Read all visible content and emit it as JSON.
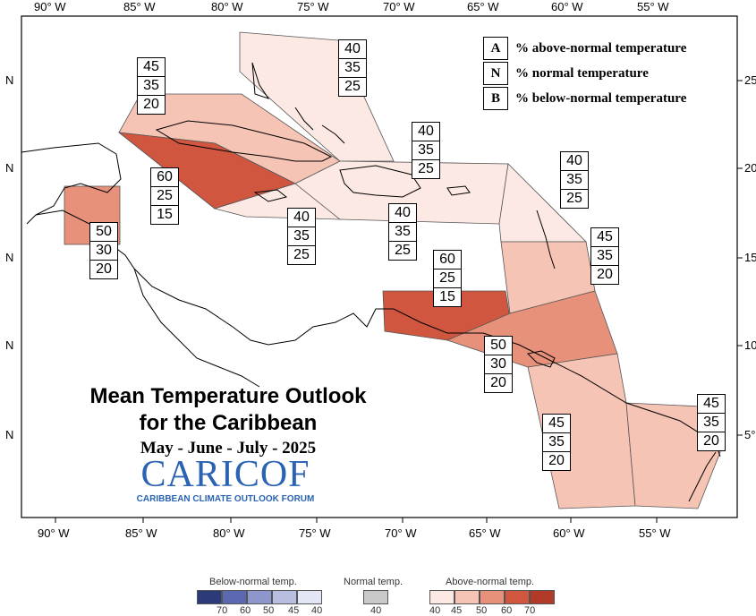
{
  "map": {
    "top_longitude_labels": [
      "90° W",
      "85° W",
      "80° W",
      "75° W",
      "70° W",
      "65° W",
      "60° W",
      "55° W"
    ],
    "bottom_longitude_labels": [
      "90° W",
      "85° W",
      "80° W",
      "75° W",
      "70° W",
      "65° W",
      "60° W",
      "55° W"
    ],
    "left_latitude_labels": [
      "N",
      "N",
      "N",
      "N",
      "N"
    ],
    "right_latitude_labels": [
      "25°",
      "20°",
      "15°",
      "10°",
      "5°"
    ],
    "colors": {
      "a40": "#fde9e3",
      "a45": "#f6c4b5",
      "a50": "#e8917a",
      "a60": "#d0563f",
      "a70": "#b23a28"
    }
  },
  "legend": {
    "items": [
      {
        "key": "A",
        "label": "% above-normal temperature"
      },
      {
        "key": "N",
        "label": "% normal temperature"
      },
      {
        "key": "B",
        "label": "% below-normal temperature"
      }
    ]
  },
  "zones": [
    {
      "name": "bahamas",
      "above": "40",
      "normal": "35",
      "below": "25"
    },
    {
      "name": "cuba",
      "above": "45",
      "normal": "35",
      "below": "20"
    },
    {
      "name": "cayman",
      "above": "60",
      "normal": "25",
      "below": "15"
    },
    {
      "name": "belize",
      "above": "50",
      "normal": "30",
      "below": "20"
    },
    {
      "name": "jamaica",
      "above": "40",
      "normal": "35",
      "below": "25"
    },
    {
      "name": "hispaniola-north",
      "above": "40",
      "normal": "35",
      "below": "25"
    },
    {
      "name": "hispaniola-south",
      "above": "40",
      "normal": "35",
      "below": "25"
    },
    {
      "name": "leeward",
      "above": "40",
      "normal": "35",
      "below": "25"
    },
    {
      "name": "windward",
      "above": "45",
      "normal": "35",
      "below": "20"
    },
    {
      "name": "abc-islands",
      "above": "60",
      "normal": "25",
      "below": "15"
    },
    {
      "name": "trinidad",
      "above": "50",
      "normal": "30",
      "below": "20"
    },
    {
      "name": "guyana",
      "above": "45",
      "normal": "35",
      "below": "20"
    },
    {
      "name": "suriname-fg",
      "above": "45",
      "normal": "35",
      "below": "20"
    }
  ],
  "title": {
    "line1": "Mean Temperature Outlook",
    "line2": "for the Caribbean",
    "period": "May - June - July - 2025"
  },
  "logo": {
    "name": "CARICOF",
    "tagline": "CARIBBEAN CLIMATE OUTLOOK FORUM"
  },
  "scale": {
    "below_title": "Below-normal temp.",
    "normal_title": "Normal temp.",
    "above_title": "Above-normal temp.",
    "below_values": [
      "70",
      "60",
      "50",
      "45",
      "40"
    ],
    "normal_values": [
      "40"
    ],
    "above_values": [
      "40",
      "45",
      "50",
      "60",
      "70"
    ],
    "below_colors": [
      "#2b3a78",
      "#5b6ab0",
      "#8e97cc",
      "#b8bee0",
      "#e3e6f4"
    ],
    "normal_color": "#c8c8c8",
    "above_colors": [
      "#fde9e3",
      "#f6c4b5",
      "#e8917a",
      "#d0563f",
      "#b23a28"
    ]
  }
}
